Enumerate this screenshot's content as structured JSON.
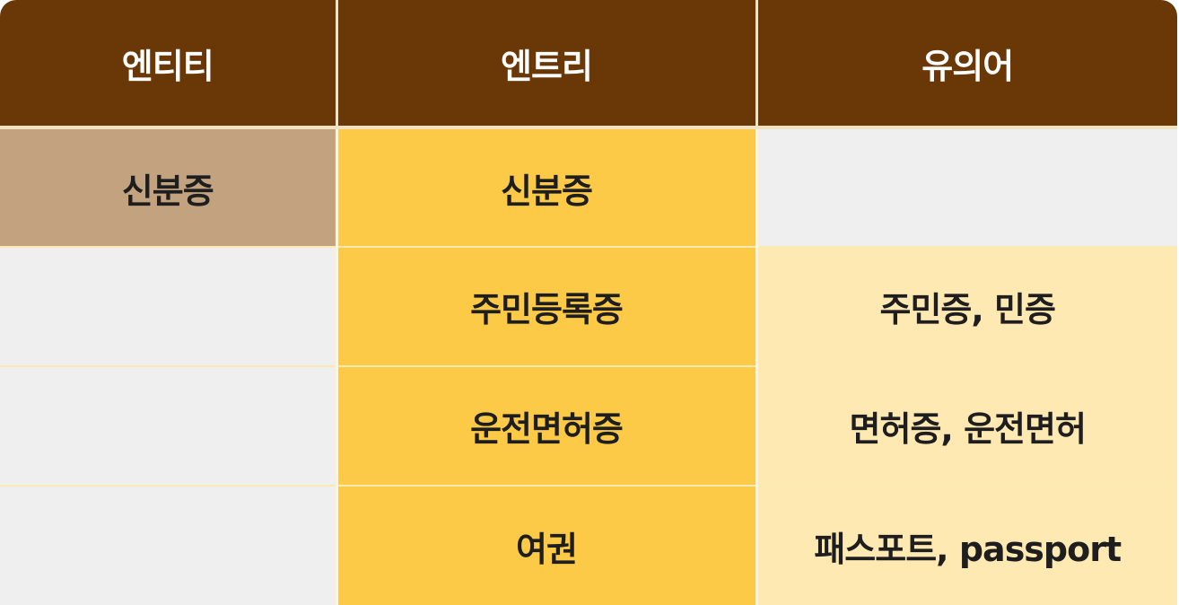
{
  "headers": [
    "엔티티",
    "엔트리",
    "유의어"
  ],
  "rows": [
    {
      "entity": "신분증",
      "entry": "신분증",
      "synonyms": ""
    },
    {
      "entity": "",
      "entry": "주민등록증",
      "synonyms": "주민증, 민증"
    },
    {
      "entity": "",
      "entry": "운전면허증",
      "synonyms": "면허증, 운전면허"
    },
    {
      "entity": "",
      "entry": "여권",
      "synonyms": "패스포트, passport"
    }
  ],
  "colors": {
    "header_bg": "#6a3806",
    "header_text": "#ffffff",
    "entity_bg": "#c3a27f",
    "empty_bg": "#efefef",
    "entry_bg": "#fdca48",
    "synonym_bg": "#ffe9b3"
  }
}
